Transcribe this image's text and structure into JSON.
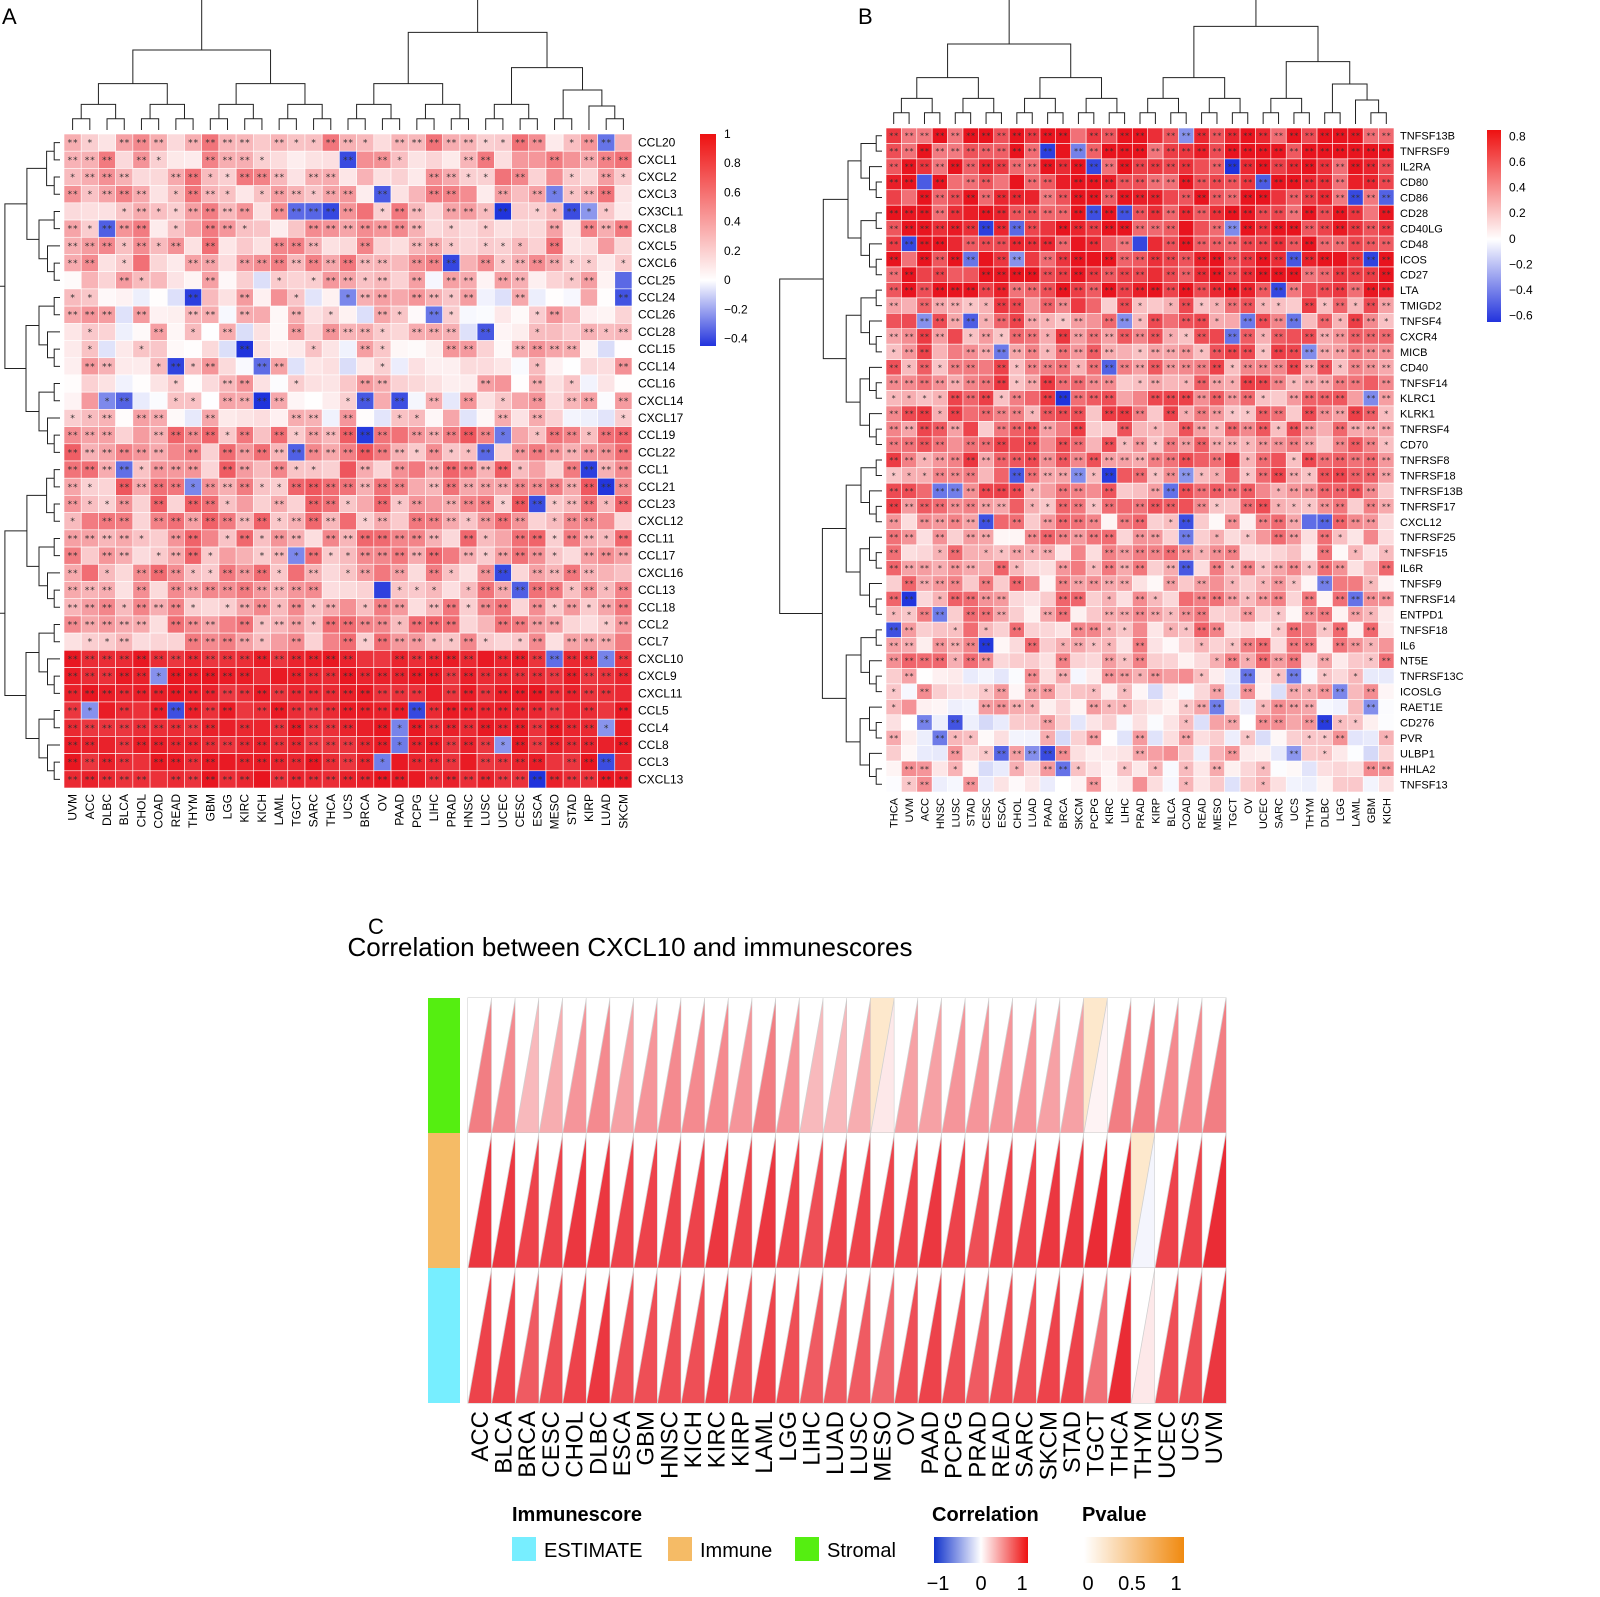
{
  "panels": {
    "a": "A",
    "b": "B",
    "c": "C"
  },
  "chart_data": [
    {
      "type": "heatmap",
      "panel": "A",
      "rows": [
        "CCL20",
        "CXCL1",
        "CXCL2",
        "CXCL3",
        "CX3CL1",
        "CXCL8",
        "CXCL5",
        "CXCL6",
        "CCL25",
        "CCL24",
        "CCL26",
        "CCL28",
        "CCL15",
        "CCL14",
        "CCL16",
        "CXCL14",
        "CXCL17",
        "CCL19",
        "CCL22",
        "CCL1",
        "CCL21",
        "CCL23",
        "CXCL12",
        "CCL11",
        "CCL17",
        "CXCL16",
        "CCL13",
        "CCL18",
        "CCL2",
        "CCL7",
        "CXCL10",
        "CXCL9",
        "CXCL11",
        "CCL5",
        "CCL4",
        "CCL8",
        "CCL3",
        "CXCL13"
      ],
      "columns": [
        "UVM",
        "ACC",
        "DLBC",
        "BLCA",
        "CHOL",
        "COAD",
        "READ",
        "THYM",
        "GBM",
        "LGG",
        "KIRC",
        "KICH",
        "LAML",
        "TGCT",
        "SARC",
        "THCA",
        "UCS",
        "BRCA",
        "OV",
        "PAAD",
        "PCPG",
        "LIHC",
        "PRAD",
        "HNSC",
        "LUSC",
        "UCEC",
        "CESC",
        "ESCA",
        "MESO",
        "STAD",
        "KIRP",
        "LUAD",
        "SKCM"
      ],
      "colorbar": {
        "ticks": [
          "1",
          "0.8",
          "0.6",
          "0.4",
          "0.2",
          "0",
          "−0.2",
          "−0.4"
        ],
        "range": [
          -0.45,
          1
        ],
        "low": "#2233dd",
        "mid": "#ffffff",
        "high": "#ee1111"
      },
      "row_group_means": [
        0.35,
        0.2,
        0.45,
        0.4,
        0.92
      ],
      "row_group_sizes": [
        8,
        9,
        5,
        8,
        8
      ],
      "significance_marks": [
        "*",
        "**"
      ]
    },
    {
      "type": "heatmap",
      "panel": "B",
      "rows": [
        "TNFSF13B",
        "TNFRSF9",
        "IL2RA",
        "CD80",
        "CD86",
        "CD28",
        "CD40LG",
        "CD48",
        "ICOS",
        "CD27",
        "LTA",
        "TMIGD2",
        "TNFSF4",
        "CXCR4",
        "MICB",
        "CD40",
        "TNFSF14",
        "KLRC1",
        "KLRK1",
        "TNFRSF4",
        "CD70",
        "TNFRSF8",
        "TNFRSF18",
        "TNFRSF13B",
        "TNFRSF17",
        "CXCL12",
        "TNFRSF25",
        "TNFSF15",
        "IL6R",
        "TNFSF9",
        "TNFRSF14",
        "ENTPD1",
        "TNFSF18",
        "IL6",
        "NT5E",
        "TNFRSF13C",
        "ICOSLG",
        "RAET1E",
        "CD276",
        "PVR",
        "ULBP1",
        "HHLA2",
        "TNFSF13"
      ],
      "columns": [
        "THCA",
        "UVM",
        "ACC",
        "HNSC",
        "LUSC",
        "STAD",
        "CESC",
        "ESCA",
        "CHOL",
        "LUAD",
        "PAAD",
        "BRCA",
        "SKCM",
        "PCPG",
        "KIRC",
        "LIHC",
        "PRAD",
        "KIRP",
        "BLCA",
        "COAD",
        "READ",
        "MESO",
        "TGCT",
        "OV",
        "UCEC",
        "SARC",
        "UCS",
        "THYM",
        "DLBC",
        "LGG",
        "LAML",
        "GBM",
        "KICH"
      ],
      "colorbar": {
        "ticks": [
          "0.8",
          "0.6",
          "0.4",
          "0.2",
          "0",
          "−0.2",
          "−0.4",
          "−0.6"
        ],
        "range": [
          -0.65,
          0.85
        ],
        "low": "#2233dd",
        "mid": "#ffffff",
        "high": "#ee1111"
      },
      "row_group_means": [
        0.75,
        0.45,
        0.3,
        0.15
      ],
      "row_group_sizes": [
        11,
        14,
        10,
        8
      ],
      "significance_marks": [
        "*",
        "**"
      ]
    },
    {
      "type": "heatmap",
      "panel": "C",
      "title": "Correlation between CXCL10 and immunescores",
      "columns": [
        "ACC",
        "BLCA",
        "BRCA",
        "CESC",
        "CHOL",
        "DLBC",
        "ESCA",
        "GBM",
        "HNSC",
        "KICH",
        "KIRC",
        "KIRP",
        "LAML",
        "LGG",
        "LIHC",
        "LUAD",
        "LUSC",
        "MESO",
        "OV",
        "PAAD",
        "PCPG",
        "PRAD",
        "READ",
        "SARC",
        "SKCM",
        "STAD",
        "TGCT",
        "THCA",
        "THYM",
        "UCEC",
        "UCS",
        "UVM"
      ],
      "rows": [
        "Stromal",
        "Immune",
        "ESTIMATE"
      ],
      "row_colors": {
        "Stromal": "#55ee11",
        "Immune": "#f5bb66",
        "ESTIMATE": "#77eeff"
      },
      "correlation": [
        [
          0.55,
          0.5,
          0.3,
          0.35,
          0.45,
          0.5,
          0.4,
          0.45,
          0.5,
          0.5,
          0.5,
          0.45,
          0.55,
          0.45,
          0.3,
          0.3,
          0.35,
          0.1,
          0.4,
          0.4,
          0.45,
          0.45,
          0.45,
          0.45,
          0.4,
          0.4,
          0.05,
          0.55,
          0.55,
          0.5,
          0.5,
          0.55
        ],
        [
          0.85,
          0.85,
          0.8,
          0.8,
          0.85,
          0.85,
          0.8,
          0.8,
          0.8,
          0.8,
          0.85,
          0.8,
          0.85,
          0.8,
          0.75,
          0.8,
          0.8,
          0.8,
          0.8,
          0.85,
          0.8,
          0.75,
          0.8,
          0.8,
          0.85,
          0.85,
          0.9,
          0.9,
          -0.05,
          0.8,
          0.8,
          0.9
        ],
        [
          0.8,
          0.8,
          0.7,
          0.75,
          0.8,
          0.85,
          0.75,
          0.75,
          0.75,
          0.75,
          0.8,
          0.75,
          0.8,
          0.75,
          0.7,
          0.7,
          0.7,
          0.65,
          0.75,
          0.8,
          0.75,
          0.7,
          0.75,
          0.75,
          0.8,
          0.8,
          0.6,
          0.9,
          0.1,
          0.75,
          0.75,
          0.85
        ]
      ],
      "pvalue_cells": [
        [
          0,
          17
        ],
        [
          0,
          26
        ],
        [
          1,
          28
        ]
      ],
      "legend": {
        "immunescore_title": "Immunescore",
        "immunescore_items": [
          "ESTIMATE",
          "Immune",
          "Stromal"
        ],
        "correlation_title": "Correlation",
        "correlation_ticks": [
          "−1",
          "0",
          "1"
        ],
        "pvalue_title": "Pvalue",
        "pvalue_ticks": [
          "0",
          "0.5",
          "1"
        ]
      }
    }
  ]
}
